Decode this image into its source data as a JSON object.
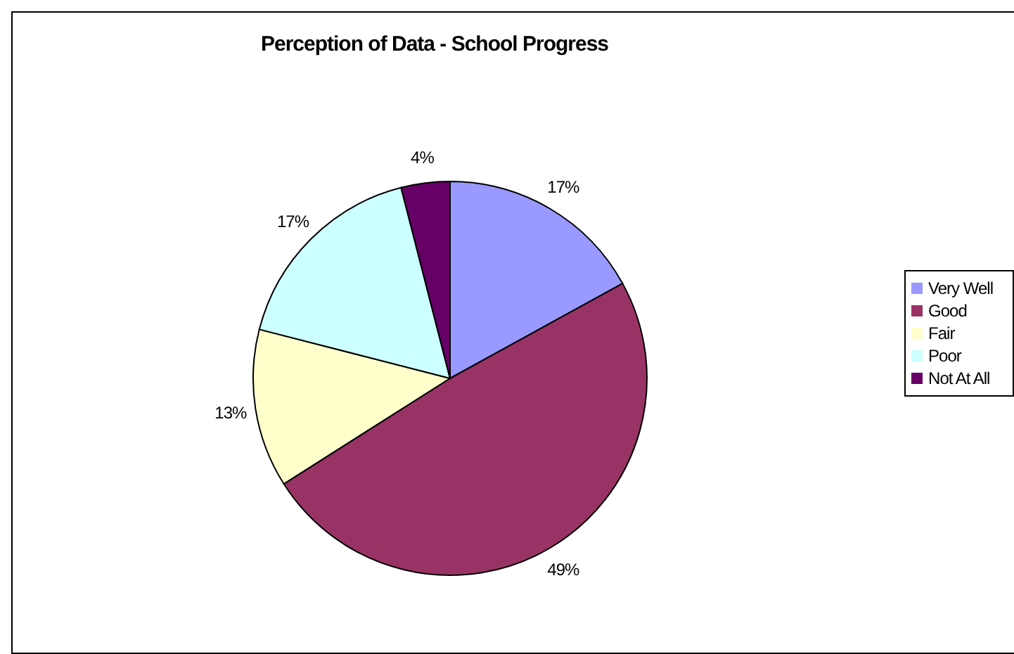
{
  "chart_data": {
    "type": "pie",
    "title": "Perception of Data - School Progress",
    "categories": [
      "Very Well",
      "Good",
      "Fair",
      "Poor",
      "Not At All"
    ],
    "values": [
      17,
      49,
      13,
      17,
      4
    ],
    "colors": [
      "#9999ff",
      "#993366",
      "#ffffcc",
      "#ccffff",
      "#660066"
    ],
    "value_labels": [
      "17%",
      "49%",
      "13%",
      "17%",
      "4%"
    ],
    "legend": "right"
  }
}
